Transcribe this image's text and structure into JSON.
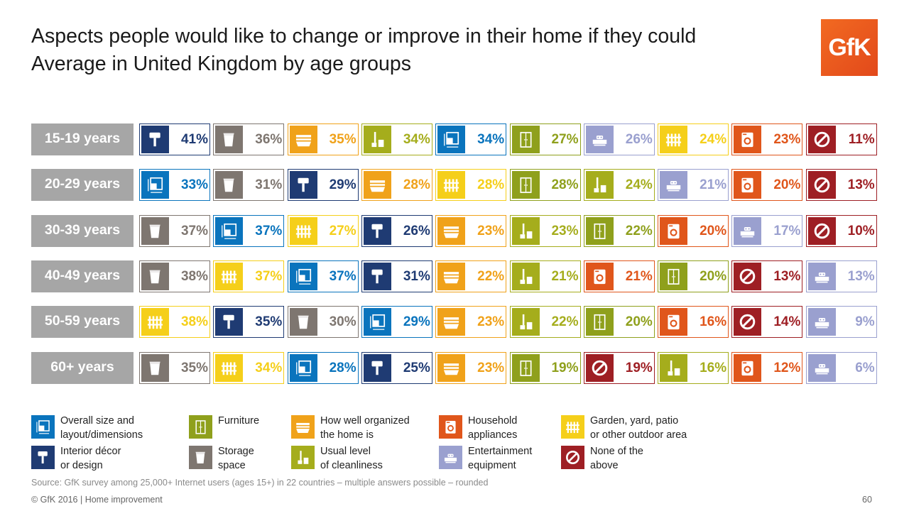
{
  "header": {
    "title_line1": "Aspects people would like to change or improve in their home if they could",
    "title_line2": "Average in United Kingdom by age groups",
    "logo_text": "GfK"
  },
  "categories": {
    "layout": {
      "label": "Overall size and\nlayout/dimensions",
      "color": "#0a74bd",
      "icon": "layout-icon"
    },
    "furniture": {
      "label": "Furniture",
      "color": "#8fa01c",
      "icon": "furniture-icon"
    },
    "organized": {
      "label": "How well organized\nthe home is",
      "color": "#f0a21a",
      "icon": "organized-icon"
    },
    "appliances": {
      "label": "Household\nappliances",
      "color": "#e0561b",
      "icon": "appliance-icon"
    },
    "garden": {
      "label": "Garden, yard, patio\nor other outdoor area",
      "color": "#f5cf1a",
      "icon": "fence-icon"
    },
    "decor": {
      "label": "Interior décor\nor design",
      "color": "#1f3b73",
      "icon": "paint-roller-icon"
    },
    "storage": {
      "label": "Storage\nspace",
      "color": "#7e7670",
      "icon": "storage-box-icon"
    },
    "clean": {
      "label": "Usual level\nof cleanliness",
      "color": "#a5ad1c",
      "icon": "broom-bucket-icon"
    },
    "entertain": {
      "label": "Entertainment\nequipment",
      "color": "#9aa0cf",
      "icon": "entertainment-icon"
    },
    "none": {
      "label": "None of the\nabove",
      "color": "#9e1f24",
      "icon": "none-icon"
    }
  },
  "legend_order": [
    "layout",
    "furniture",
    "organized",
    "appliances",
    "garden",
    "decor",
    "storage",
    "clean",
    "entertain",
    "none"
  ],
  "chart_data": {
    "type": "table",
    "title": "Aspects people would like to change or improve in their home if they could",
    "subtitle": "Average in United Kingdom by age groups",
    "unit": "%",
    "rows": [
      {
        "age": "15-19 years",
        "items": [
          [
            "decor",
            41
          ],
          [
            "storage",
            36
          ],
          [
            "organized",
            35
          ],
          [
            "clean",
            34
          ],
          [
            "layout",
            34
          ],
          [
            "furniture",
            27
          ],
          [
            "entertain",
            26
          ],
          [
            "garden",
            24
          ],
          [
            "appliances",
            23
          ],
          [
            "none",
            11
          ]
        ]
      },
      {
        "age": "20-29 years",
        "items": [
          [
            "layout",
            33
          ],
          [
            "storage",
            31
          ],
          [
            "decor",
            29
          ],
          [
            "organized",
            28
          ],
          [
            "garden",
            28
          ],
          [
            "furniture",
            28
          ],
          [
            "clean",
            24
          ],
          [
            "entertain",
            21
          ],
          [
            "appliances",
            20
          ],
          [
            "none",
            13
          ]
        ]
      },
      {
        "age": "30-39 years",
        "items": [
          [
            "storage",
            37
          ],
          [
            "layout",
            37
          ],
          [
            "garden",
            27
          ],
          [
            "decor",
            26
          ],
          [
            "organized",
            23
          ],
          [
            "clean",
            23
          ],
          [
            "furniture",
            22
          ],
          [
            "appliances",
            20
          ],
          [
            "entertain",
            17
          ],
          [
            "none",
            10
          ]
        ]
      },
      {
        "age": "40-49 years",
        "items": [
          [
            "storage",
            38
          ],
          [
            "garden",
            37
          ],
          [
            "layout",
            37
          ],
          [
            "decor",
            31
          ],
          [
            "organized",
            22
          ],
          [
            "clean",
            21
          ],
          [
            "appliances",
            21
          ],
          [
            "furniture",
            20
          ],
          [
            "none",
            13
          ],
          [
            "entertain",
            13
          ]
        ]
      },
      {
        "age": "50-59 years",
        "items": [
          [
            "garden",
            38
          ],
          [
            "decor",
            35
          ],
          [
            "storage",
            30
          ],
          [
            "layout",
            29
          ],
          [
            "organized",
            23
          ],
          [
            "clean",
            22
          ],
          [
            "furniture",
            20
          ],
          [
            "appliances",
            16
          ],
          [
            "none",
            14
          ],
          [
            "entertain",
            9
          ]
        ]
      },
      {
        "age": "60+ years",
        "items": [
          [
            "storage",
            35
          ],
          [
            "garden",
            34
          ],
          [
            "layout",
            28
          ],
          [
            "decor",
            25
          ],
          [
            "organized",
            23
          ],
          [
            "furniture",
            19
          ],
          [
            "none",
            19
          ],
          [
            "clean",
            16
          ],
          [
            "appliances",
            12
          ],
          [
            "entertain",
            6
          ]
        ]
      }
    ]
  },
  "footer": {
    "source": "Source: GfK survey among 25,000+ Internet users (ages 15+) in 22 countries – multiple answers possible – rounded",
    "copyright": "© GfK 2016 | Home improvement",
    "page_number": "60"
  }
}
